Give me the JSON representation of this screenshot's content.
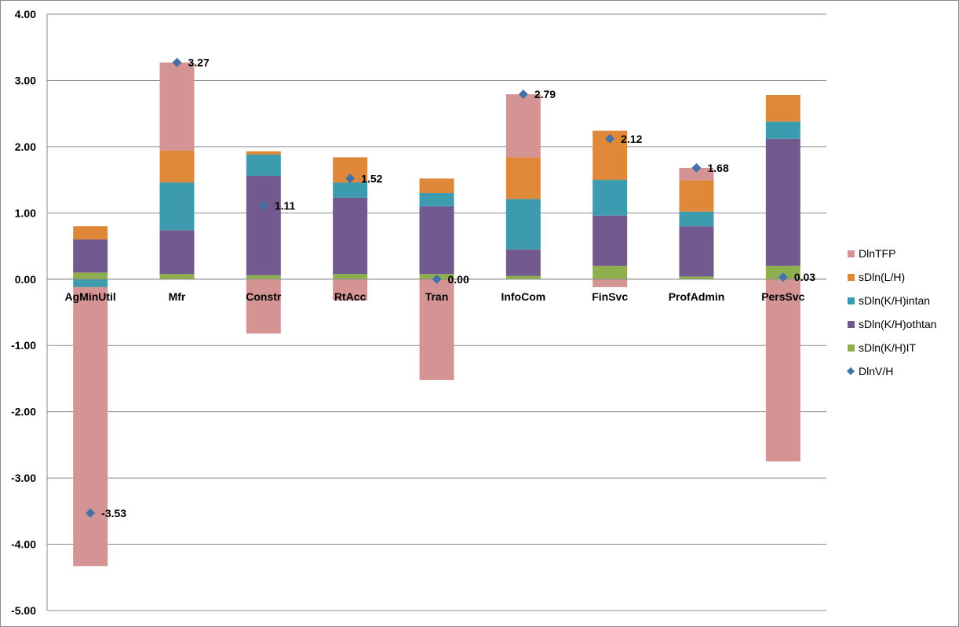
{
  "chart_data": {
    "type": "bar",
    "stacked": true,
    "title": "",
    "xlabel": "",
    "ylabel": "",
    "ylim": [
      -5,
      4
    ],
    "y_ticks": [
      "4.00",
      "3.00",
      "2.00",
      "1.00",
      "0.00",
      "-1.00",
      "-2.00",
      "-3.00",
      "-4.00",
      "-5.00"
    ],
    "grid": true,
    "legend_position": "right",
    "categories": [
      "AgMinUtil",
      "Mfr",
      "Constr",
      "RtAcc",
      "Tran",
      "InfoCom",
      "FinSvc",
      "ProfAdmin",
      "PersSvc"
    ],
    "series": [
      {
        "name": "sDln(K/H)IT",
        "color": "#8faf4f",
        "values": [
          0.1,
          0.08,
          0.06,
          0.08,
          0.08,
          0.05,
          0.2,
          0.04,
          0.2
        ]
      },
      {
        "name": "sDln(K/H)othtan",
        "color": "#725a8f",
        "values": [
          0.5,
          0.66,
          1.5,
          1.15,
          1.02,
          0.4,
          0.76,
          0.76,
          1.92
        ]
      },
      {
        "name": "sDln(K/H)intan",
        "color": "#3d9bb0",
        "values": [
          -0.12,
          0.72,
          0.32,
          0.23,
          0.2,
          0.76,
          0.54,
          0.22,
          0.26
        ]
      },
      {
        "name": "sDln(L/H)",
        "color": "#e0883a",
        "values": [
          0.2,
          0.48,
          0.05,
          0.38,
          0.22,
          0.63,
          0.74,
          0.47,
          0.4
        ]
      },
      {
        "name": "DlnTFP",
        "color": "#d49494",
        "values": [
          -4.21,
          1.33,
          -0.82,
          -0.32,
          -1.52,
          0.95,
          -0.12,
          0.19,
          -2.75
        ]
      }
    ],
    "line_series": {
      "name": "DlnV/H",
      "color": "#4472a8",
      "marker": "diamond",
      "values": [
        -3.53,
        3.27,
        1.11,
        1.52,
        0.0,
        2.79,
        2.12,
        1.68,
        0.03
      ]
    },
    "data_labels": [
      "-3.53",
      "3.27",
      "1.11",
      "1.52",
      "0.00",
      "2.79",
      "2.12",
      "1.68",
      "0.03"
    ],
    "legend_order": [
      "DlnTFP",
      "sDln(L/H)",
      "sDln(K/H)intan",
      "sDln(K/H)othtan",
      "sDln(K/H)IT",
      "DlnV/H"
    ]
  }
}
